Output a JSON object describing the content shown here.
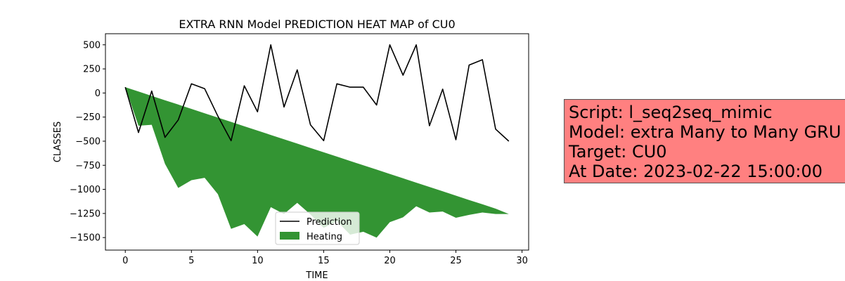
{
  "chart_data": {
    "type": "line",
    "title": "EXTRA RNN Model PREDICTION HEAT MAP of CU0",
    "xlabel": "TIME",
    "ylabel": "CLASSES",
    "xlim": [
      -1.5,
      30.5
    ],
    "ylim": [
      -1630,
      615
    ],
    "xticks": [
      0,
      5,
      10,
      15,
      20,
      25,
      30
    ],
    "yticks": [
      500,
      250,
      0,
      -250,
      -500,
      -750,
      -1000,
      -1250,
      -1500
    ],
    "ytick_labels": [
      "500",
      "250",
      "0",
      "−250",
      "−500",
      "−750",
      "−1000",
      "−1250",
      "−1500"
    ],
    "x": [
      0,
      1,
      2,
      3,
      4,
      5,
      6,
      7,
      8,
      9,
      10,
      11,
      12,
      13,
      14,
      15,
      16,
      17,
      18,
      19,
      20,
      21,
      22,
      23,
      24,
      25,
      26,
      27,
      28,
      29
    ],
    "series": [
      {
        "name": "Prediction",
        "color": "#000000",
        "values": [
          60,
          -410,
          20,
          -460,
          -280,
          95,
          45,
          -240,
          -495,
          75,
          -195,
          500,
          -145,
          240,
          -330,
          -495,
          95,
          60,
          60,
          -125,
          500,
          185,
          500,
          -340,
          40,
          -485,
          290,
          345,
          -375,
          -500
        ]
      }
    ],
    "heating": {
      "name": "Heating",
      "color": "#228b22",
      "upper": [
        60,
        15,
        -30,
        -75,
        -120,
        -165,
        -210,
        -255,
        -300,
        -345,
        -390,
        -435,
        -480,
        -525,
        -570,
        -615,
        -660,
        -705,
        -750,
        -795,
        -840,
        -885,
        -930,
        -975,
        -1020,
        -1065,
        -1110,
        -1155,
        -1200,
        -1255
      ],
      "lower": [
        60,
        -340,
        -330,
        -735,
        -985,
        -905,
        -880,
        -1050,
        -1410,
        -1360,
        -1490,
        -1185,
        -1255,
        -1140,
        -1260,
        -1400,
        -1330,
        -1470,
        -1440,
        -1500,
        -1340,
        -1290,
        -1175,
        -1240,
        -1230,
        -1295,
        -1265,
        -1240,
        -1255,
        -1255
      ]
    },
    "legend": {
      "position": "lower center",
      "entries": [
        "Prediction",
        "Heating"
      ]
    },
    "grid": false
  },
  "info_box": {
    "line1": "Script: l_seq2seq_mimic",
    "line2": "Model: extra Many to Many GRU",
    "line3": "Target: CU0",
    "line4": "At Date: 2023-02-22 15:00:00",
    "bg_color": "#ff8080"
  }
}
